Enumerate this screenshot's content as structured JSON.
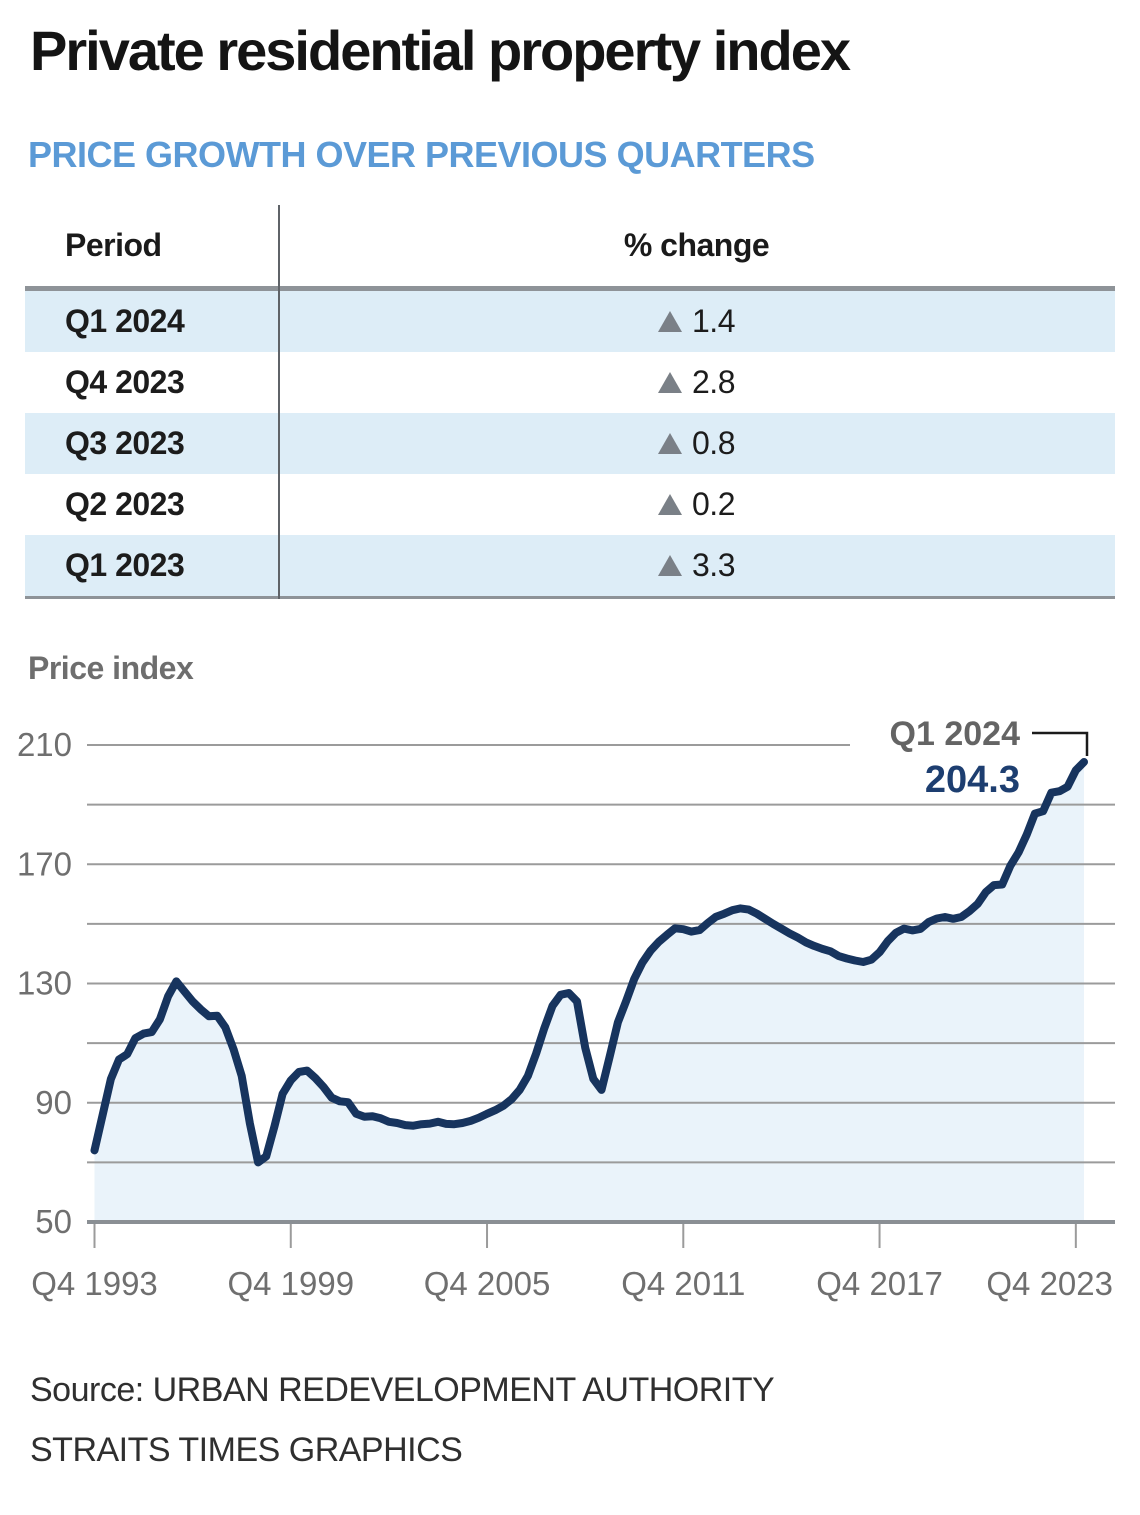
{
  "title": "Private residential property index",
  "subtitle": "PRICE GROWTH OVER PREVIOUS QUARTERS",
  "table": {
    "columns": [
      "Period",
      "% change"
    ],
    "rows": [
      {
        "period": "Q1 2024",
        "change": "1.4",
        "direction": "up"
      },
      {
        "period": "Q4 2023",
        "change": "2.8",
        "direction": "up"
      },
      {
        "period": "Q3 2023",
        "change": "0.8",
        "direction": "up"
      },
      {
        "period": "Q2 2023",
        "change": "0.2",
        "direction": "up"
      },
      {
        "period": "Q1 2023",
        "change": "3.3",
        "direction": "up"
      }
    ]
  },
  "chart_label": "Price index",
  "annotation": {
    "label": "Q1 2024",
    "value": "204.3"
  },
  "source_line1": "Source: URBAN REDEVELOPMENT AUTHORITY",
  "source_line2": "STRAITS TIMES GRAPHICS",
  "colors": {
    "accent_blue": "#5b9ad6",
    "row_blue": "#ddedf7",
    "line_navy": "#17345e",
    "area_fill": "#eaf3fa",
    "grid_gray": "#9b9b9b",
    "axis_gray": "#8a8f94",
    "label_gray": "#6f6f6f",
    "value_navy": "#1d3e70",
    "triangle_gray": "#7a8087",
    "connector_black": "#1b1b1b"
  },
  "chart_data": {
    "type": "line",
    "title": "Price index",
    "frequency": "quarterly",
    "x_start": "Q4 1993",
    "x_end": "Q1 2024",
    "x_tick_labels": [
      "Q4 1993",
      "Q4 1999",
      "Q4 2005",
      "Q4 2011",
      "Q4 2017",
      "Q4 2023"
    ],
    "x_tick_interval_quarters": 24,
    "y_tick_labels": [
      210,
      170,
      130,
      90,
      50
    ],
    "ylim": [
      50,
      210
    ],
    "gridline_step": 20,
    "grid": true,
    "legend_position": "none",
    "series": [
      {
        "name": "Private residential property index",
        "values": [
          74,
          86,
          98,
          104.5,
          106.3,
          111.7,
          113.2,
          113.7,
          118,
          125.7,
          130.7,
          127.3,
          124,
          121.3,
          119,
          119.2,
          115.3,
          108,
          99,
          83,
          70,
          72,
          82,
          93,
          97.5,
          100.3,
          100.8,
          98.3,
          95.3,
          91.7,
          90.5,
          90.2,
          86.3,
          85.3,
          85.5,
          84.8,
          83.6,
          83.2,
          82.5,
          82.3,
          82.8,
          83.0,
          83.6,
          82.9,
          82.8,
          83.2,
          83.9,
          85.0,
          86.3,
          87.5,
          89.0,
          91.2,
          94.3,
          99,
          106.5,
          115,
          122.5,
          126.2,
          126.8,
          124,
          108.5,
          98,
          94.3,
          105.5,
          117,
          124,
          131.5,
          137,
          141,
          144,
          146.3,
          148.5,
          148.2,
          147.4,
          147.9,
          150.3,
          152.4,
          153.4,
          154.6,
          155.2,
          154.8,
          153.4,
          151.7,
          150.0,
          148.4,
          146.8,
          145.4,
          143.8,
          142.6,
          141.6,
          140.8,
          139.2,
          138.4,
          137.7,
          137.2,
          138.0,
          140.5,
          144.2,
          147.0,
          148.4,
          147.8,
          148.3,
          150.6,
          151.8,
          152.3,
          151.7,
          152.3,
          154.3,
          156.7,
          160.7,
          163.0,
          163.2,
          169.5,
          174.0,
          180.0,
          187.0,
          187.8,
          194.0,
          194.5,
          196.0,
          201.5,
          204.3
        ]
      }
    ],
    "annotation": {
      "x": "Q1 2024",
      "y": 204.3,
      "label": "Q1 2024",
      "value_label": "204.3"
    }
  }
}
